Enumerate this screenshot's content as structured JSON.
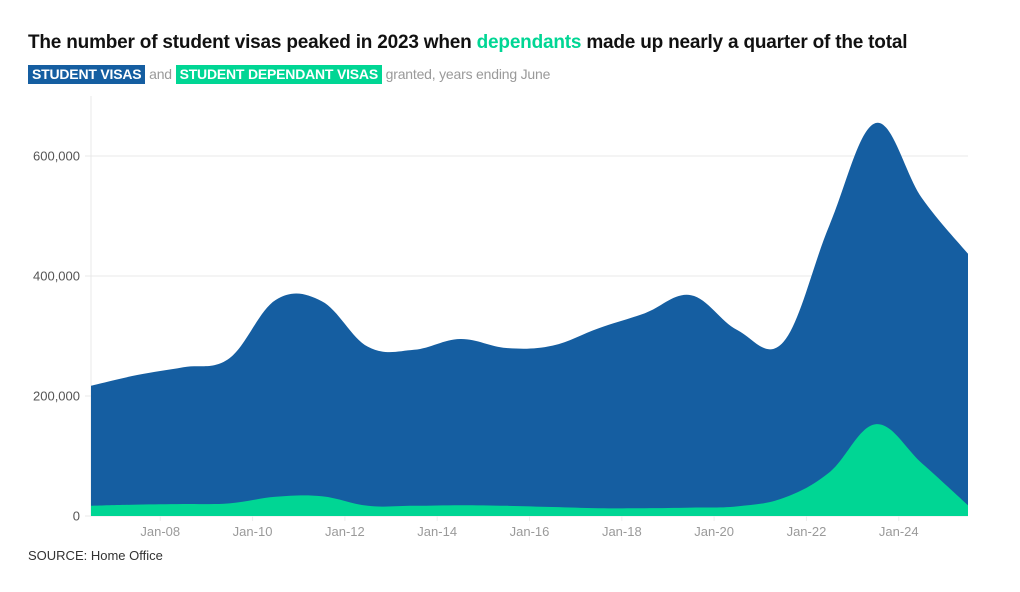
{
  "header": {
    "title_part1": "The number of student visas peaked in 2023 when ",
    "title_highlight": "dependants",
    "title_part2": " made up nearly a quarter of the total",
    "subtitle_tag1": "STUDENT VISAS",
    "subtitle_and": " and ",
    "subtitle_tag2": "STUDENT DEPENDANT VISAS",
    "subtitle_rest": " granted, years ending June"
  },
  "footer": {
    "source": "SOURCE: Home Office"
  },
  "colors": {
    "student": "#155ea1",
    "dependant": "#00d694",
    "grid": "#e8e8e8"
  },
  "chart_data": {
    "type": "area",
    "title": "The number of student visas peaked in 2023 when dependants made up nearly a quarter of the total",
    "subtitle": "STUDENT VISAS and STUDENT DEPENDANT VISAS granted, years ending June",
    "xlabel": "",
    "ylabel": "",
    "x": [
      "Jun-06",
      "Jun-07",
      "Jun-08",
      "Jun-09",
      "Jun-10",
      "Jun-11",
      "Jun-12",
      "Jun-13",
      "Jun-14",
      "Jun-15",
      "Jun-16",
      "Jun-17",
      "Jun-18",
      "Jun-19",
      "Jun-20",
      "Jun-21",
      "Jun-22",
      "Jun-23",
      "Jun-24",
      "Jun-25"
    ],
    "x_years": [
      2006.5,
      2007.5,
      2008.5,
      2009.5,
      2010.5,
      2011.5,
      2012.5,
      2013.5,
      2014.5,
      2015.5,
      2016.5,
      2017.5,
      2018.5,
      2019.5,
      2020.5,
      2021.5,
      2022.5,
      2023.5,
      2024.5,
      2025.5
    ],
    "series": [
      {
        "name": "Student visas",
        "color": "#155ea1",
        "values": [
          217000,
          235000,
          248000,
          263000,
          360000,
          358000,
          282000,
          277000,
          295000,
          280000,
          284000,
          313000,
          338000,
          368000,
          310000,
          290000,
          485000,
          655000,
          530000,
          437000
        ]
      },
      {
        "name": "Student dependant visas",
        "color": "#00d694",
        "values": [
          17000,
          19000,
          20000,
          21000,
          32000,
          33000,
          17000,
          17000,
          18000,
          17000,
          15000,
          13000,
          13000,
          14000,
          16000,
          30000,
          73000,
          153000,
          88000,
          18000
        ]
      }
    ],
    "xticks": [
      {
        "label": "Jan-08",
        "year": 2008
      },
      {
        "label": "Jan-10",
        "year": 2010
      },
      {
        "label": "Jan-12",
        "year": 2012
      },
      {
        "label": "Jan-14",
        "year": 2014
      },
      {
        "label": "Jan-16",
        "year": 2016
      },
      {
        "label": "Jan-18",
        "year": 2018
      },
      {
        "label": "Jan-20",
        "year": 2020
      },
      {
        "label": "Jan-22",
        "year": 2022
      },
      {
        "label": "Jan-24",
        "year": 2024
      }
    ],
    "yticks": [
      {
        "label": "0",
        "value": 0
      },
      {
        "label": "200,000",
        "value": 200000
      },
      {
        "label": "400,000",
        "value": 400000
      },
      {
        "label": "600,000",
        "value": 600000
      }
    ],
    "ylim": [
      0,
      700000
    ],
    "xlim": [
      2006.5,
      2025.5
    ],
    "grid": true,
    "legend": "subtitle"
  }
}
